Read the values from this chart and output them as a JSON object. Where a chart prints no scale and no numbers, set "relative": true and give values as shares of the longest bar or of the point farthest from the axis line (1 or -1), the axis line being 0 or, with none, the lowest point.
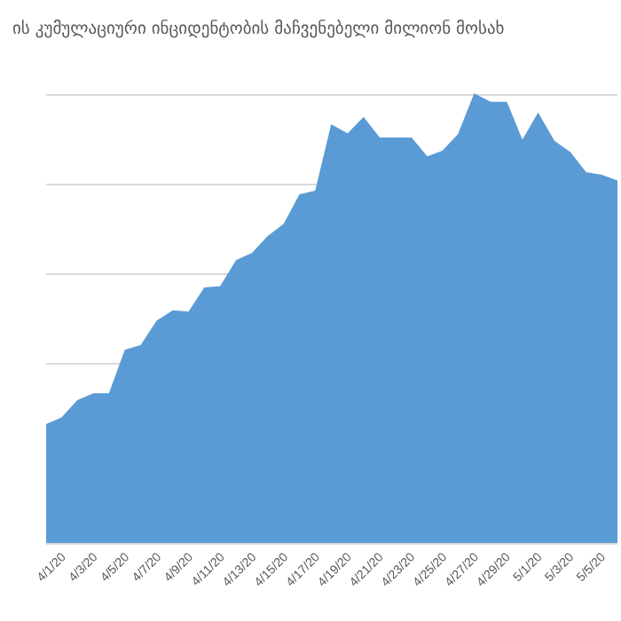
{
  "chart_data": {
    "type": "area",
    "title": "ის კუმულაციური ინციდენტობის მაჩვენებელი მილიონ მოსახ",
    "relative": true,
    "grid": "y",
    "categories": [
      null,
      "4/1/20",
      null,
      "4/3/20",
      null,
      "4/5/20",
      null,
      "4/7/20",
      null,
      "4/9/20",
      null,
      "4/11/20",
      null,
      "4/13/20",
      null,
      "4/15/20",
      null,
      "4/17/20",
      null,
      "4/19/20",
      null,
      "4/21/20",
      null,
      "4/23/20",
      null,
      "4/25/20",
      null,
      "4/27/20",
      null,
      "4/29/20",
      null,
      "5/1/20",
      null,
      "5/3/20",
      null,
      "5/5/20",
      null
    ],
    "series": [
      {
        "color": "#5b9bd5",
        "values": [
          0.263,
          0.278,
          0.317,
          0.332,
          0.332,
          0.429,
          0.44,
          0.494,
          0.517,
          0.514,
          0.568,
          0.571,
          0.629,
          0.645,
          0.683,
          0.71,
          0.776,
          0.784,
          0.931,
          0.911,
          0.947,
          0.902,
          0.902,
          0.902,
          0.86,
          0.873,
          0.911,
          1,
          0.982,
          0.982,
          0.895,
          0.956,
          0.895,
          0.87,
          0.825,
          0.819,
          0.806
        ]
      }
    ]
  }
}
